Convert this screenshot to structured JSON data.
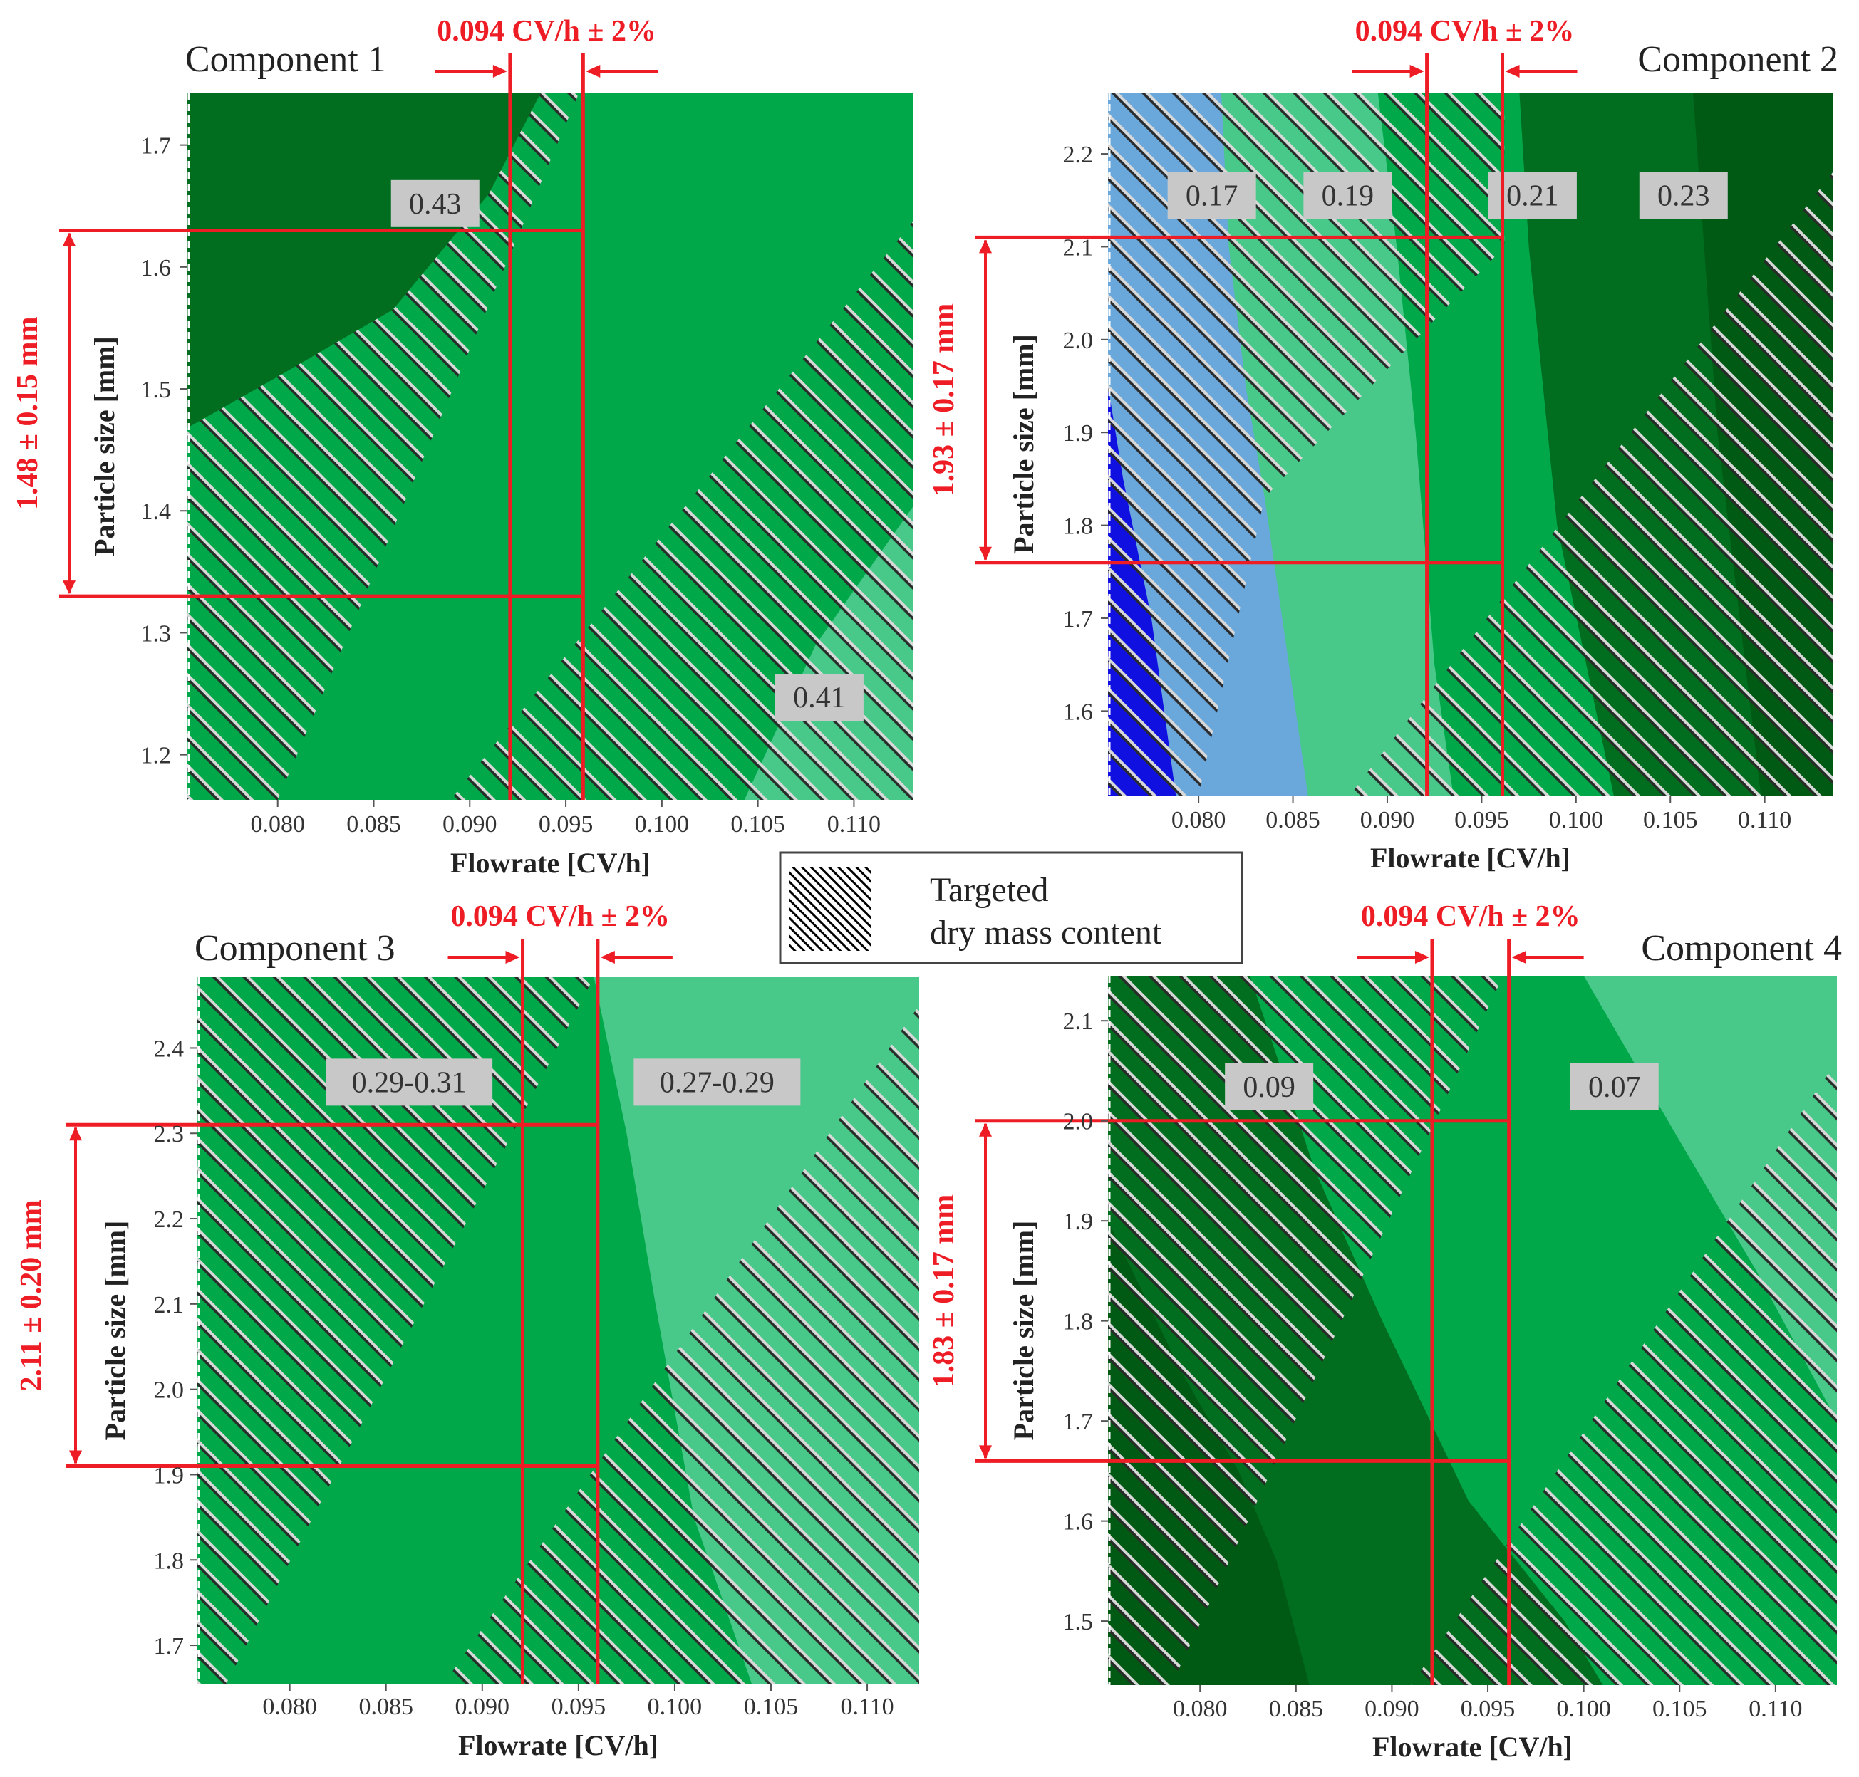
{
  "colors": {
    "green_dark": "#006e1e",
    "green_darker": "#005a14",
    "green_mid": "#00a84a",
    "green_light": "#48c98a",
    "blue_light": "#6aa8dc",
    "blue_dark": "#1010e0",
    "red": "#ee1c24",
    "hatch": "#2a2a2a",
    "hatch_highlight": "#d8d8d8",
    "label_bg": "#c8c8c8"
  },
  "legend": {
    "line1": "Targeted",
    "line2": "dry mass content"
  },
  "chart_data": [
    {
      "type": "contour",
      "title": "Component 1",
      "xlabel": "Flowrate [CV/h]",
      "ylabel": "Particle size [mm]",
      "xlim": [
        0.0753,
        0.1131
      ],
      "ylim": [
        1.163,
        1.743
      ],
      "xticks": [
        0.08,
        0.085,
        0.09,
        0.095,
        0.1,
        0.105,
        0.11
      ],
      "xtick_labels": [
        "0.080",
        "0.085",
        "0.090",
        "0.095",
        "0.100",
        "0.105",
        "0.110"
      ],
      "yticks": [
        1.2,
        1.3,
        1.4,
        1.5,
        1.6,
        1.7
      ],
      "ytick_labels": [
        "1.2",
        "1.3",
        "1.4",
        "1.5",
        "1.6",
        "1.7"
      ],
      "flow_annotation": "0.094 CV/h ± 2%",
      "flow_lo": 0.0921,
      "flow_hi": 0.0959,
      "size_annotation": "1.48 ± 0.15 mm",
      "size_lo": 1.33,
      "size_hi": 1.63,
      "contour_labels": [
        {
          "text": "0.43",
          "x": 0.0882,
          "y": 1.652
        },
        {
          "text": "0.41",
          "x": 0.1082,
          "y": 1.247
        }
      ],
      "regions": [
        {
          "color": "green_dark",
          "points": [
            [
              0.0753,
              1.743
            ],
            [
              0.0937,
              1.743
            ],
            [
              0.091,
              1.66
            ],
            [
              0.086,
              1.565
            ],
            [
              0.08,
              1.51
            ],
            [
              0.0753,
              1.468
            ]
          ]
        },
        {
          "color": "green_light",
          "points": [
            [
              0.1131,
              1.163
            ],
            [
              0.1131,
              1.404
            ],
            [
              0.108,
              1.29
            ],
            [
              0.1043,
              1.163
            ]
          ]
        }
      ],
      "hatch_clips": [
        [
          [
            0.0753,
            1.163
          ],
          [
            0.0753,
            1.743
          ],
          [
            0.0937,
            1.743
          ],
          [
            0.091,
            1.66
          ],
          [
            0.086,
            1.565
          ],
          [
            0.08,
            1.51
          ],
          [
            0.0753,
            1.468
          ],
          [
            0.0753,
            1.743
          ],
          [
            0.0937,
            1.743
          ],
          [
            0.0957,
            1.743
          ],
          [
            0.08,
            1.163
          ]
        ],
        [
          [
            0.089,
            1.163
          ],
          [
            0.1131,
            1.638
          ],
          [
            0.1131,
            1.163
          ]
        ]
      ]
    },
    {
      "type": "contour",
      "title": "Component 2",
      "xlabel": "Flowrate [CV/h]",
      "ylabel": "Particle size [mm]",
      "xlim": [
        0.0752,
        0.1136
      ],
      "ylim": [
        1.509,
        2.266
      ],
      "xticks": [
        0.08,
        0.085,
        0.09,
        0.095,
        0.1,
        0.105,
        0.11
      ],
      "xtick_labels": [
        "0.080",
        "0.085",
        "0.090",
        "0.095",
        "0.100",
        "0.105",
        "0.110"
      ],
      "yticks": [
        1.6,
        1.7,
        1.8,
        1.9,
        2.0,
        2.1,
        2.2
      ],
      "ytick_labels": [
        "1.6",
        "1.7",
        "1.8",
        "1.9",
        "2.0",
        "2.1",
        "2.2"
      ],
      "flow_annotation": "0.094 CV/h ± 2%",
      "flow_lo": 0.0921,
      "flow_hi": 0.0961,
      "size_annotation": "1.93 ± 0.17 mm",
      "size_lo": 1.76,
      "size_hi": 2.11,
      "contour_labels": [
        {
          "text": "0.17",
          "x": 0.0807,
          "y": 2.155
        },
        {
          "text": "0.19",
          "x": 0.0879,
          "y": 2.155
        },
        {
          "text": "0.21",
          "x": 0.0977,
          "y": 2.155
        },
        {
          "text": "0.23",
          "x": 0.1057,
          "y": 2.155
        }
      ],
      "regions": [
        {
          "color": "green_light",
          "points": [
            [
              0.0812,
              2.266
            ],
            [
              0.0952,
              2.266
            ],
            [
              0.0952,
              1.509
            ],
            [
              0.0858,
              1.509
            ],
            [
              0.083,
              1.83
            ],
            [
              0.0812,
              2.1
            ]
          ]
        },
        {
          "color": "green_mid",
          "points": [
            [
              0.0895,
              2.266
            ],
            [
              0.0965,
              2.266
            ],
            [
              0.0965,
              1.509
            ],
            [
              0.0935,
              1.509
            ],
            [
              0.0925,
              1.65
            ],
            [
              0.0915,
              1.9
            ],
            [
              0.0905,
              2.1
            ]
          ]
        },
        {
          "color": "blue_light",
          "points": [
            [
              0.0752,
              2.266
            ],
            [
              0.0812,
              2.266
            ],
            [
              0.0816,
              2.1
            ],
            [
              0.0825,
              1.95
            ],
            [
              0.0835,
              1.83
            ],
            [
              0.0858,
              1.509
            ],
            [
              0.0752,
              1.509
            ]
          ]
        },
        {
          "color": "blue_dark",
          "points": [
            [
              0.0752,
              1.95
            ],
            [
              0.076,
              1.85
            ],
            [
              0.0775,
              1.7
            ],
            [
              0.0788,
              1.509
            ],
            [
              0.0752,
              1.509
            ]
          ]
        },
        {
          "color": "green_dark",
          "points": [
            [
              0.097,
              2.266
            ],
            [
              0.1136,
              2.266
            ],
            [
              0.1136,
              1.509
            ],
            [
              0.102,
              1.509
            ],
            [
              0.099,
              1.8
            ],
            [
              0.0975,
              2.1
            ]
          ]
        },
        {
          "color": "green_darker",
          "points": [
            [
              0.1062,
              2.266
            ],
            [
              0.1136,
              2.266
            ],
            [
              0.1136,
              1.509
            ],
            [
              0.1098,
              1.509
            ],
            [
              0.1075,
              1.9
            ]
          ]
        }
      ],
      "hatch_clips": [
        [
          [
            0.0752,
            1.509
          ],
          [
            0.0752,
            2.266
          ],
          [
            0.0962,
            2.266
          ],
          [
            0.0962,
            2.1
          ],
          [
            0.0835,
            1.83
          ],
          [
            0.08,
            1.509
          ]
        ],
        [
          [
            0.088,
            1.509
          ],
          [
            0.1136,
            2.18
          ],
          [
            0.1136,
            1.509
          ]
        ]
      ]
    },
    {
      "type": "contour",
      "title": "Component 3",
      "xlabel": "Flowrate [CV/h]",
      "ylabel": "Particle size [mm]",
      "xlim": [
        0.0752,
        0.1127
      ],
      "ylim": [
        1.655,
        2.483
      ],
      "xticks": [
        0.08,
        0.085,
        0.09,
        0.095,
        0.1,
        0.105,
        0.11
      ],
      "xtick_labels": [
        "0.080",
        "0.085",
        "0.090",
        "0.095",
        "0.100",
        "0.105",
        "0.110"
      ],
      "yticks": [
        1.7,
        1.8,
        1.9,
        2.0,
        2.1,
        2.2,
        2.3,
        2.4
      ],
      "ytick_labels": [
        "1.7",
        "1.8",
        "1.9",
        "2.0",
        "2.1",
        "2.2",
        "2.3",
        "2.4"
      ],
      "flow_annotation": "0.094 CV/h ± 2%",
      "flow_lo": 0.0921,
      "flow_hi": 0.096,
      "size_annotation": "2.11 ± 0.20 mm",
      "size_lo": 1.91,
      "size_hi": 2.31,
      "contour_labels": [
        {
          "text": "0.29-0.31",
          "x": 0.0862,
          "y": 2.36
        },
        {
          "text": "0.27-0.29",
          "x": 0.1022,
          "y": 2.36
        }
      ],
      "regions": [
        {
          "color": "green_light",
          "points": [
            [
              0.0958,
              2.483
            ],
            [
              0.1127,
              2.483
            ],
            [
              0.1127,
              1.655
            ],
            [
              0.104,
              1.655
            ],
            [
              0.101,
              1.85
            ],
            [
              0.099,
              2.1
            ],
            [
              0.0975,
              2.3
            ]
          ]
        }
      ],
      "hatch_clips": [
        [
          [
            0.0752,
            1.655
          ],
          [
            0.0752,
            2.483
          ],
          [
            0.0958,
            2.483
          ],
          [
            0.0767,
            1.655
          ]
        ],
        [
          [
            0.088,
            1.655
          ],
          [
            0.1127,
            2.45
          ],
          [
            0.1127,
            1.655
          ]
        ]
      ]
    },
    {
      "type": "contour",
      "title": "Component 4",
      "xlabel": "Flowrate [CV/h]",
      "ylabel": "Particle size [mm]",
      "xlim": [
        0.0752,
        0.1132
      ],
      "ylim": [
        1.436,
        2.145
      ],
      "xticks": [
        0.08,
        0.085,
        0.09,
        0.095,
        0.1,
        0.105,
        0.11
      ],
      "xtick_labels": [
        "0.080",
        "0.085",
        "0.090",
        "0.095",
        "0.100",
        "0.105",
        "0.110"
      ],
      "yticks": [
        1.5,
        1.6,
        1.7,
        1.8,
        1.9,
        2.0,
        2.1
      ],
      "ytick_labels": [
        "1.5",
        "1.6",
        "1.7",
        "1.8",
        "1.9",
        "2.0",
        "2.1"
      ],
      "flow_annotation": "0.094 CV/h ± 2%",
      "flow_lo": 0.0921,
      "flow_hi": 0.0961,
      "size_annotation": "1.83 ± 0.17 mm",
      "size_lo": 1.66,
      "size_hi": 2.0,
      "contour_labels": [
        {
          "text": "0.09",
          "x": 0.0836,
          "y": 2.034
        },
        {
          "text": "0.07",
          "x": 0.1016,
          "y": 2.034
        }
      ],
      "regions": [
        {
          "color": "green_dark",
          "points": [
            [
              0.0752,
              2.145
            ],
            [
              0.0826,
              2.145
            ],
            [
              0.086,
              1.95
            ],
            [
              0.0895,
              1.8
            ],
            [
              0.094,
              1.62
            ],
            [
              0.099,
              1.5
            ],
            [
              0.101,
              1.436
            ],
            [
              0.0752,
              1.436
            ]
          ]
        },
        {
          "color": "green_darker",
          "points": [
            [
              0.0752,
              1.9
            ],
            [
              0.079,
              1.75
            ],
            [
              0.082,
              1.65
            ],
            [
              0.084,
              1.56
            ],
            [
              0.0857,
              1.436
            ],
            [
              0.0752,
              1.436
            ]
          ]
        },
        {
          "color": "green_light",
          "points": [
            [
              0.1,
              2.145
            ],
            [
              0.1132,
              2.145
            ],
            [
              0.1132,
              1.7
            ],
            [
              0.109,
              1.85
            ],
            [
              0.105,
              1.98
            ]
          ]
        }
      ],
      "hatch_clips": [
        [
          [
            0.0752,
            1.436
          ],
          [
            0.0752,
            2.145
          ],
          [
            0.0958,
            2.145
          ],
          [
            0.0785,
            1.436
          ]
        ],
        [
          [
            0.091,
            1.436
          ],
          [
            0.1132,
            2.06
          ],
          [
            0.1132,
            1.436
          ]
        ]
      ]
    }
  ]
}
